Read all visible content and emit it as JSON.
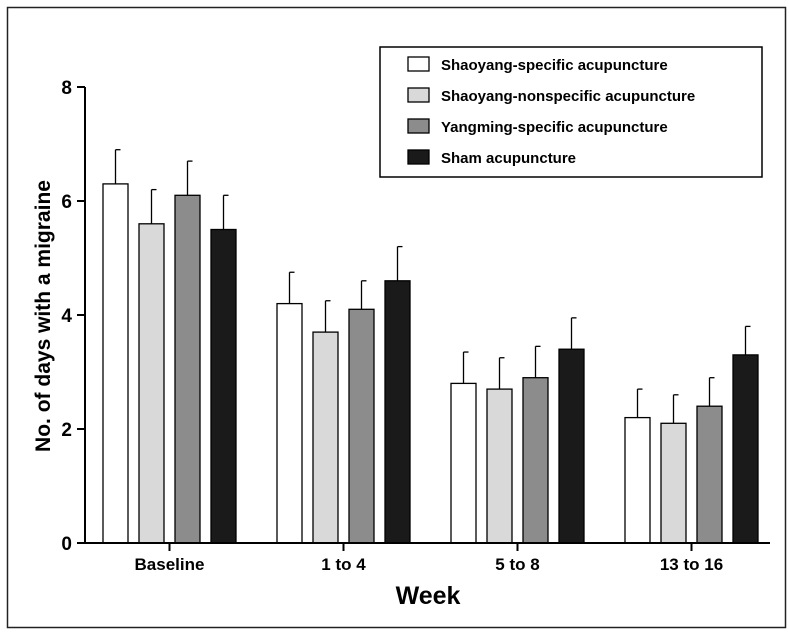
{
  "chart_data": {
    "type": "bar",
    "title": "",
    "xlabel": "Week",
    "ylabel": "No. of days with a  migraine",
    "ylim": [
      0,
      8
    ],
    "yticks": [
      0,
      2,
      4,
      6,
      8
    ],
    "grid": false,
    "legend_position": "top-right",
    "categories": [
      "Baseline",
      "1 to 4",
      "5 to 8",
      "13 to 16"
    ],
    "series": [
      {
        "name": "Shaoyang-specific acupuncture",
        "color": "#ffffff",
        "values": [
          6.3,
          4.2,
          2.8,
          2.2
        ],
        "errors": [
          0.6,
          0.55,
          0.55,
          0.5
        ]
      },
      {
        "name": "Shaoyang-nonspecific acupuncture",
        "color": "#d9d9d9",
        "values": [
          5.6,
          3.7,
          2.7,
          2.1
        ],
        "errors": [
          0.6,
          0.55,
          0.55,
          0.5
        ]
      },
      {
        "name": "Yangming-specific acupuncture",
        "color": "#8c8c8c",
        "values": [
          6.1,
          4.1,
          2.9,
          2.4
        ],
        "errors": [
          0.6,
          0.5,
          0.55,
          0.5
        ]
      },
      {
        "name": "Sham acupuncture",
        "color": "#1a1a1a",
        "values": [
          5.5,
          4.6,
          3.4,
          3.3
        ],
        "errors": [
          0.6,
          0.6,
          0.55,
          0.5
        ]
      }
    ]
  }
}
